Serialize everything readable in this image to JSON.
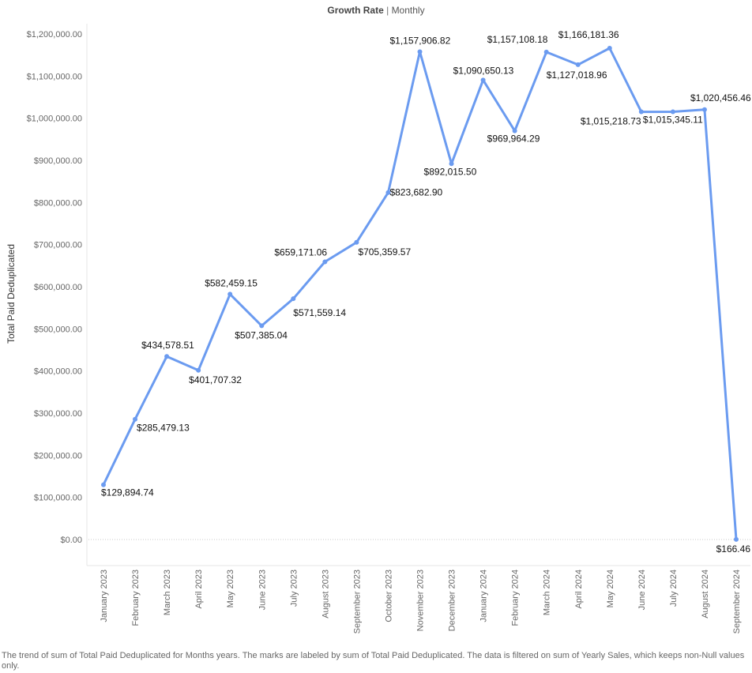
{
  "header": {
    "title_bold": "Growth Rate",
    "title_separator": "|",
    "title_rest": "Monthly"
  },
  "caption": "The trend of sum of Total Paid Deduplicated for Months years.  The marks are labeled by sum of Total Paid Deduplicated. The data is filtered on sum of Yearly Sales, which keeps non-Null values only.",
  "chart_data": {
    "type": "line",
    "ylabel": "Total Paid Deduplicated",
    "ylim": [
      0,
      1200000
    ],
    "yticks": [
      0,
      100000,
      200000,
      300000,
      400000,
      500000,
      600000,
      700000,
      800000,
      900000,
      1000000,
      1100000,
      1200000
    ],
    "ytick_labels": [
      "$0.00",
      "$100,000.00",
      "$200,000.00",
      "$300,000.00",
      "$400,000.00",
      "$500,000.00",
      "$600,000.00",
      "$700,000.00",
      "$800,000.00",
      "$900,000.00",
      "$1,000,000.00",
      "$1,100,000.00",
      "$1,200,000.00"
    ],
    "categories": [
      "January 2023",
      "February 2023",
      "March 2023",
      "April 2023",
      "May 2023",
      "June 2023",
      "July 2023",
      "August 2023",
      "September 2023",
      "October 2023",
      "November 2023",
      "December 2023",
      "January 2024",
      "February 2024",
      "March 2024",
      "April 2024",
      "May 2024",
      "June 2024",
      "July 2024",
      "August 2024",
      "September 2024"
    ],
    "values": [
      129894.74,
      285479.13,
      434578.51,
      401707.32,
      582459.15,
      507385.04,
      571559.14,
      659171.06,
      705359.57,
      823682.9,
      1157906.82,
      892015.5,
      1090650.13,
      969964.29,
      1157108.18,
      1127018.96,
      1166181.36,
      1015218.73,
      1015345.11,
      1020456.46,
      166.46
    ],
    "data_labels": [
      "$129,894.74",
      "$285,479.13",
      "$434,578.51",
      "$401,707.32",
      "$582,459.15",
      "$507,385.04",
      "$571,559.14",
      "$659,171.06",
      "$705,359.57",
      "$823,682.90",
      "$1,157,906.82",
      "$892,015.50",
      "$1,090,650.13",
      "$969,964.29",
      "$1,157,108.18",
      "$1,127,018.96",
      "$1,166,181.36",
      "$1,015,218.73",
      "$1,015,345.11",
      "$1,020,456.46",
      "$166.46"
    ],
    "line_color": "#6b9bf0",
    "grid": false
  }
}
